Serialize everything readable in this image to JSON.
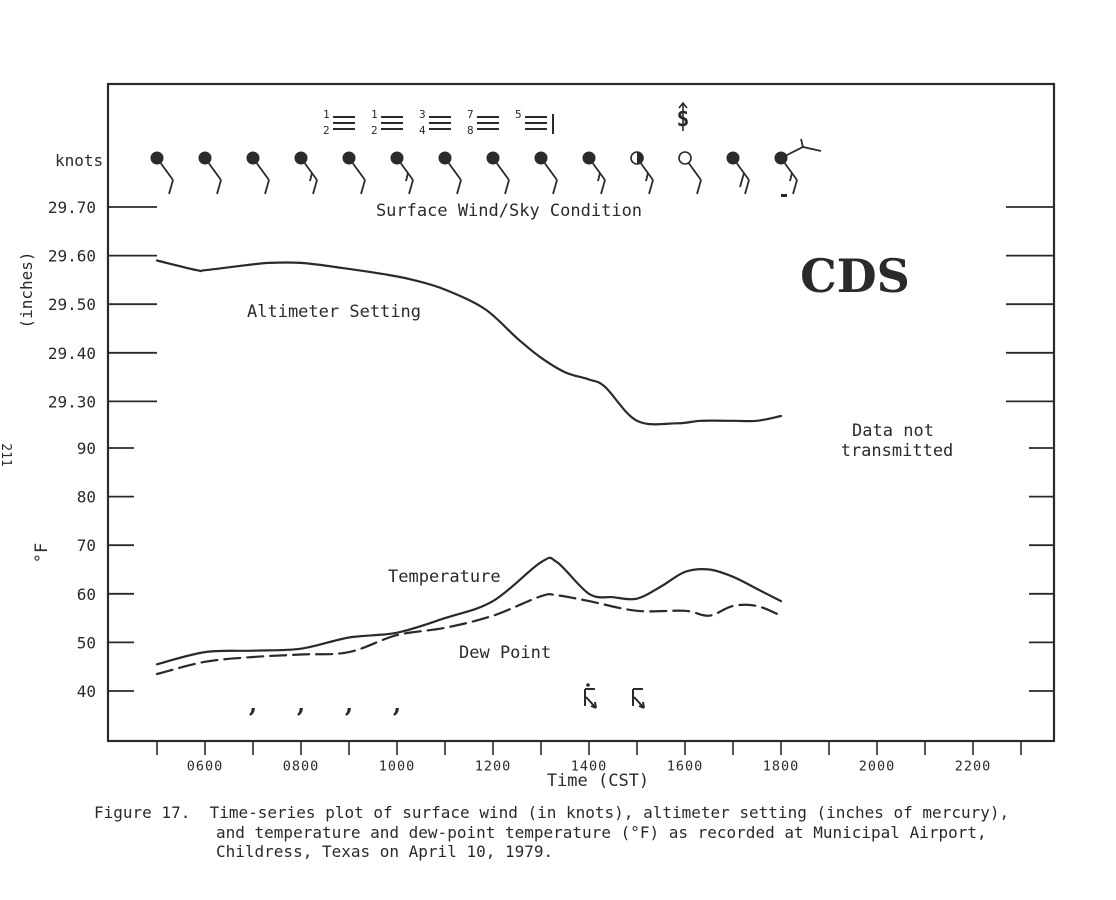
{
  "page_number": "211",
  "chart_data": {
    "type": "line",
    "station": "CDS",
    "xlabel": "Time (CST)",
    "x_ticks": [
      "0600",
      "0800",
      "1000",
      "1200",
      "1400",
      "1600",
      "1800",
      "2000",
      "2200"
    ],
    "xlim": [
      "0500",
      "2300"
    ],
    "wind_label": "knots",
    "wind_annotation": "Surface Wind/Sky Condition",
    "altimeter": {
      "ylabel": "(inches)",
      "ticks": [
        "29.70",
        "29.60",
        "29.50",
        "29.40",
        "29.30"
      ],
      "ylim": [
        29.2,
        29.7
      ]
    },
    "temperature_axis": {
      "ylabel": "°F",
      "ticks": [
        "90",
        "80",
        "70",
        "60",
        "50",
        "40"
      ],
      "ylim": [
        40,
        90
      ]
    },
    "series": [
      {
        "name": "Altimeter Setting",
        "axis": "altimeter",
        "style": "solid",
        "points": [
          [
            "0500",
            29.59
          ],
          [
            "0550",
            29.57
          ],
          [
            "0600",
            29.57
          ],
          [
            "0650",
            29.58
          ],
          [
            "0720",
            29.585
          ],
          [
            "0800",
            29.585
          ],
          [
            "0850",
            29.575
          ],
          [
            "0950",
            29.56
          ],
          [
            "1020",
            29.55
          ],
          [
            "1100",
            29.53
          ],
          [
            "1150",
            29.49
          ],
          [
            "1230",
            29.43
          ],
          [
            "1300",
            29.39
          ],
          [
            "1330",
            29.36
          ],
          [
            "1400",
            29.345
          ],
          [
            "1420",
            29.33
          ],
          [
            "1500",
            29.26
          ],
          [
            "1550",
            29.255
          ],
          [
            "1620",
            29.26
          ],
          [
            "1700",
            29.26
          ],
          [
            "1730",
            29.26
          ],
          [
            "1800",
            29.27
          ]
        ]
      },
      {
        "name": "Temperature",
        "axis": "temperature",
        "style": "solid",
        "points": [
          [
            "0500",
            45.5
          ],
          [
            "0600",
            48
          ],
          [
            "0700",
            48.3
          ],
          [
            "0800",
            48.7
          ],
          [
            "0900",
            51
          ],
          [
            "1000",
            52
          ],
          [
            "1100",
            55
          ],
          [
            "1200",
            58.5
          ],
          [
            "1300",
            66.5
          ],
          [
            "1320",
            66.5
          ],
          [
            "1400",
            60
          ],
          [
            "1430",
            59.3
          ],
          [
            "1500",
            59
          ],
          [
            "1530",
            61.5
          ],
          [
            "1600",
            64.5
          ],
          [
            "1630",
            65
          ],
          [
            "1700",
            63.5
          ],
          [
            "1730",
            61
          ],
          [
            "1800",
            58.5
          ]
        ]
      },
      {
        "name": "Dew Point",
        "axis": "temperature",
        "style": "dashed",
        "points": [
          [
            "0500",
            43.5
          ],
          [
            "0600",
            46
          ],
          [
            "0700",
            47
          ],
          [
            "0800",
            47.5
          ],
          [
            "0900",
            48
          ],
          [
            "1000",
            51.5
          ],
          [
            "1100",
            53
          ],
          [
            "1200",
            55.5
          ],
          [
            "1300",
            59.5
          ],
          [
            "1320",
            59.7
          ],
          [
            "1400",
            58.5
          ],
          [
            "1500",
            56.5
          ],
          [
            "1600",
            56.5
          ],
          [
            "1630",
            55.5
          ],
          [
            "1700",
            57.5
          ],
          [
            "1730",
            57.5
          ],
          [
            "1800",
            55.5
          ]
        ]
      }
    ],
    "annotations": [
      {
        "text": "Altimeter Setting"
      },
      {
        "text": "Temperature"
      },
      {
        "text": "Dew Point"
      },
      {
        "text": "Data not"
      },
      {
        "text": "transmitted"
      }
    ],
    "wind_observations": [
      {
        "time": "0500",
        "sky": "overcast",
        "barbs": 1
      },
      {
        "time": "0600",
        "sky": "overcast",
        "barbs": 1
      },
      {
        "time": "0700",
        "sky": "overcast",
        "barbs": 1
      },
      {
        "time": "0800",
        "sky": "overcast",
        "barbs": 1.5
      },
      {
        "time": "0900",
        "sky": "overcast",
        "barbs": 1
      },
      {
        "time": "1000",
        "sky": "overcast",
        "barbs": 1.5
      },
      {
        "time": "1100",
        "sky": "overcast",
        "barbs": 1
      },
      {
        "time": "1200",
        "sky": "overcast",
        "barbs": 1
      },
      {
        "time": "1300",
        "sky": "overcast",
        "barbs": 1
      },
      {
        "time": "1400",
        "sky": "overcast",
        "barbs": 1.5
      },
      {
        "time": "1500",
        "sky": "broken",
        "barbs": 1.5
      },
      {
        "time": "1600",
        "sky": "clear",
        "barbs": 1
      },
      {
        "time": "1700",
        "sky": "overcast",
        "barbs": 2
      },
      {
        "time": "1800",
        "sky": "overcast",
        "barbs": 1.5
      }
    ],
    "cloud_layers": [
      {
        "time": "0700",
        "top": "1",
        "bottom": "2"
      },
      {
        "time": "0800",
        "top": "1",
        "bottom": "2"
      },
      {
        "time": "0900",
        "top": "3",
        "bottom": "4"
      },
      {
        "time": "1000",
        "top": "7",
        "bottom": "8"
      },
      {
        "time": "1100",
        "top": "5",
        "bottom": ""
      }
    ],
    "weather_symbols": [
      {
        "time": "0700",
        "symbol": "drizzle"
      },
      {
        "time": "0800",
        "symbol": "drizzle"
      },
      {
        "time": "0900",
        "symbol": "drizzle"
      },
      {
        "time": "1000",
        "symbol": "drizzle"
      },
      {
        "time": "1400",
        "symbol": "thunderstorm-rain"
      },
      {
        "time": "1500",
        "symbol": "thunderstorm"
      },
      {
        "time": "1600",
        "symbol": "duststorm"
      }
    ]
  },
  "caption": {
    "label": "Figure 17.",
    "line1": "Time-series plot of surface wind (in knots), altimeter setting (inches of mercury),",
    "line2": "and temperature and dew-point temperature (°F) as recorded at Municipal Airport,",
    "line3": "Childress, Texas on April 10, 1979."
  },
  "colors": {
    "ink": "#2a2a2a",
    "paper": "#ffffff"
  }
}
